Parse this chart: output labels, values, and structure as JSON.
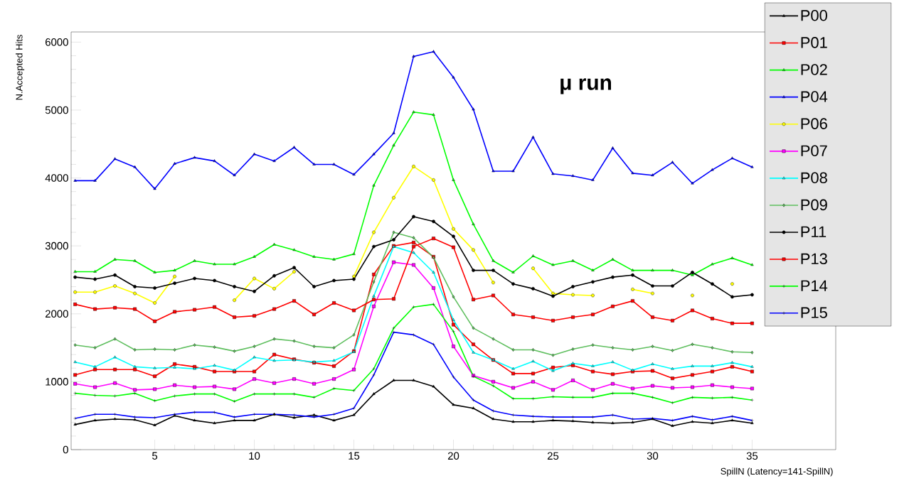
{
  "chart_data": {
    "type": "line",
    "xlabel": "SpillN (Latency=141-SpillN)",
    "ylabel": "N.Accepted Hits",
    "annotations": [
      "μ  run"
    ],
    "x": [
      1,
      2,
      3,
      4,
      5,
      6,
      7,
      8,
      9,
      10,
      11,
      12,
      13,
      14,
      15,
      16,
      17,
      18,
      19,
      20,
      21,
      22,
      23,
      24,
      25,
      26,
      27,
      28,
      29,
      30,
      31,
      32,
      33,
      34,
      35
    ],
    "xlim": [
      0.8,
      39.2
    ],
    "xticks": [
      5,
      10,
      15,
      20,
      25,
      30,
      35
    ],
    "ylim": [
      0,
      6150
    ],
    "yticks": [
      0,
      1000,
      2000,
      3000,
      4000,
      5000,
      6000
    ],
    "legend": "top right",
    "series": [
      {
        "name": "P00",
        "color": "#000000",
        "marker": "triangle",
        "values": [
          370,
          430,
          450,
          440,
          360,
          500,
          430,
          390,
          430,
          430,
          520,
          470,
          510,
          430,
          510,
          820,
          1020,
          1020,
          930,
          660,
          610,
          450,
          410,
          410,
          430,
          420,
          400,
          390,
          400,
          450,
          350,
          410,
          390,
          430,
          390
        ]
      },
      {
        "name": "P01",
        "color": "#ff0000",
        "marker": "square",
        "values": [
          1100,
          1180,
          1180,
          1180,
          1080,
          1260,
          1220,
          1150,
          1150,
          1150,
          1400,
          1330,
          1280,
          1230,
          1450,
          2580,
          3000,
          3050,
          2840,
          1840,
          1550,
          1320,
          1120,
          1120,
          1210,
          1240,
          1150,
          1110,
          1150,
          1160,
          1050,
          1100,
          1150,
          1220,
          1150
        ]
      },
      {
        "name": "P02",
        "color": "#00ff00",
        "marker": "triangle",
        "values": [
          2620,
          2620,
          2800,
          2780,
          2610,
          2640,
          2780,
          2730,
          2730,
          2840,
          3020,
          2940,
          2840,
          2800,
          2880,
          3890,
          4480,
          4970,
          4930,
          3970,
          3320,
          2780,
          2610,
          2850,
          2720,
          2780,
          2640,
          2800,
          2640,
          2640,
          2640,
          2570,
          2730,
          2820,
          2720
        ]
      },
      {
        "name": "P04",
        "color": "#0000ff",
        "marker": "triangle",
        "values": [
          3960,
          3960,
          4280,
          4160,
          3840,
          4210,
          4300,
          4250,
          4040,
          4350,
          4250,
          4450,
          4200,
          4200,
          4050,
          4350,
          4660,
          5790,
          5860,
          5480,
          5010,
          4100,
          4100,
          4600,
          4060,
          4030,
          3970,
          4440,
          4070,
          4040,
          4230,
          3920,
          4120,
          4290,
          4160
        ]
      },
      {
        "name": "P06",
        "color": "#ffff00",
        "marker": "circle",
        "values": [
          2320,
          2320,
          2410,
          2300,
          2160,
          2550,
          null,
          null,
          2200,
          2520,
          2370,
          2620,
          null,
          null,
          2550,
          3200,
          3710,
          4170,
          3970,
          3250,
          2940,
          2460,
          null,
          2670,
          2300,
          2280,
          2270,
          null,
          2360,
          2300,
          null,
          2270,
          null,
          2440,
          null
        ]
      },
      {
        "name": "P07",
        "color": "#ff00ff",
        "marker": "square",
        "values": [
          970,
          920,
          980,
          880,
          890,
          950,
          920,
          930,
          890,
          1040,
          980,
          1040,
          970,
          1040,
          1180,
          2110,
          2760,
          2720,
          2380,
          1520,
          1090,
          1000,
          910,
          1000,
          880,
          1020,
          880,
          970,
          900,
          940,
          910,
          920,
          950,
          920,
          900
        ]
      },
      {
        "name": "P08",
        "color": "#00ffff",
        "marker": "triangle",
        "values": [
          1290,
          1220,
          1360,
          1220,
          1200,
          1210,
          1190,
          1240,
          1170,
          1360,
          1310,
          1320,
          1290,
          1310,
          1440,
          2260,
          2990,
          2900,
          2610,
          1910,
          1430,
          1320,
          1190,
          1300,
          1160,
          1270,
          1230,
          1290,
          1170,
          1260,
          1190,
          1230,
          1230,
          1280,
          1220
        ]
      },
      {
        "name": "P09",
        "color": "#5fbf5f",
        "marker": "diamond",
        "values": [
          1540,
          1500,
          1630,
          1470,
          1480,
          1470,
          1540,
          1510,
          1450,
          1520,
          1630,
          1600,
          1520,
          1500,
          1690,
          2470,
          3200,
          3120,
          2830,
          2250,
          1790,
          1630,
          1470,
          1470,
          1390,
          1480,
          1540,
          1500,
          1470,
          1520,
          1460,
          1550,
          1500,
          1440,
          1430
        ]
      },
      {
        "name": "P11",
        "color": "#000000",
        "marker": "circle",
        "values": [
          2540,
          2510,
          2570,
          2400,
          2380,
          2450,
          2520,
          2490,
          2400,
          2330,
          2560,
          2680,
          2400,
          2490,
          2510,
          2990,
          3090,
          3430,
          3360,
          3140,
          2640,
          2640,
          2440,
          2370,
          2260,
          2400,
          2470,
          2540,
          2570,
          2410,
          2410,
          2610,
          2440,
          2250,
          2280
        ]
      },
      {
        "name": "P13",
        "color": "#ff0000",
        "marker": "square",
        "values": [
          2140,
          2070,
          2090,
          2070,
          1890,
          2030,
          2060,
          2100,
          1950,
          1970,
          2070,
          2190,
          1990,
          2160,
          2050,
          2210,
          2220,
          2990,
          3110,
          2980,
          2210,
          2270,
          1990,
          1950,
          1900,
          1950,
          1990,
          2110,
          2190,
          1950,
          1900,
          2050,
          1930,
          1860,
          1860
        ]
      },
      {
        "name": "P14",
        "color": "#00ff00",
        "marker": "cross",
        "values": [
          830,
          800,
          790,
          830,
          720,
          790,
          820,
          820,
          710,
          820,
          820,
          820,
          770,
          900,
          870,
          1190,
          1790,
          2100,
          2140,
          1740,
          1080,
          940,
          750,
          750,
          780,
          770,
          770,
          830,
          830,
          770,
          690,
          770,
          760,
          770,
          730
        ]
      },
      {
        "name": "P15",
        "color": "#0000ff",
        "marker": "cross",
        "values": [
          460,
          520,
          520,
          480,
          470,
          520,
          550,
          550,
          480,
          520,
          520,
          510,
          480,
          520,
          610,
          1100,
          1730,
          1690,
          1550,
          1070,
          730,
          570,
          510,
          490,
          480,
          480,
          480,
          510,
          450,
          460,
          430,
          490,
          440,
          490,
          430
        ]
      }
    ]
  }
}
